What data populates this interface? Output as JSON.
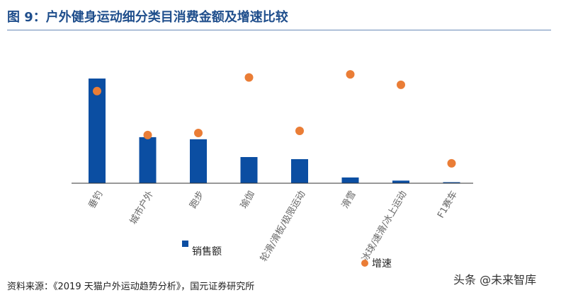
{
  "title": "图 9：户外健身运动细分类目消费金额及增速比较",
  "source": "资料来源：《2019 天猫户外运动趋势分析》，国元证券研究所",
  "watermark": "头条 @未来智库",
  "colors": {
    "bar": "#0b4ea2",
    "dot": "#ea7d36",
    "title": "#1f4e8c"
  },
  "chart_data": {
    "type": "bar",
    "title": "",
    "xlabel": "",
    "ylabel": "",
    "categories": [
      "垂钓",
      "城市户外",
      "跑步",
      "瑜伽",
      "轮滑/滑板/极限运动",
      "滑雪",
      "冰球/速滑/冰上运动",
      "F1赛车"
    ],
    "series": [
      {
        "name": "销售额",
        "type": "bar",
        "values": [
          100,
          44,
          42,
          25,
          23,
          5.5,
          2.5,
          1
        ]
      },
      {
        "name": "增速",
        "type": "scatter",
        "values": [
          88,
          46,
          48,
          101,
          50,
          104,
          94,
          19
        ]
      }
    ],
    "ylim": [
      0,
      110
    ],
    "grid": false,
    "legend_position": "bottom"
  }
}
